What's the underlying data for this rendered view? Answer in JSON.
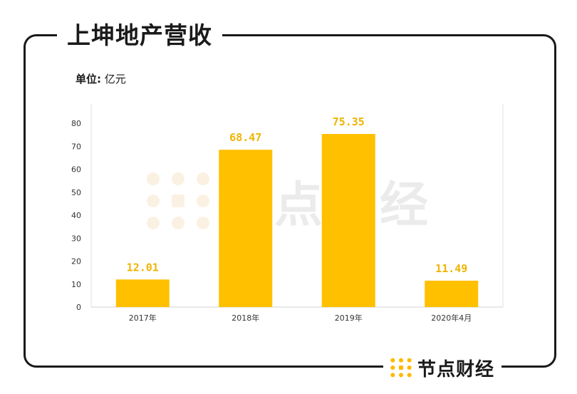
{
  "title": "上坤地产营收",
  "unit": {
    "label": "单位:",
    "value": "亿元"
  },
  "brand": {
    "name": "节点财经",
    "icon": "node-logo-icon"
  },
  "watermark": {
    "text": "节点财经",
    "icon": "node-logo-icon"
  },
  "colors": {
    "bar": "#FFC000",
    "value_label": "#F0B400",
    "frame": "#1A1A1A",
    "brand_orange": "#FFB800"
  },
  "chart_data": {
    "type": "bar",
    "categories": [
      "2017年",
      "2018年",
      "2019年",
      "2020年4月"
    ],
    "values": [
      12.01,
      68.47,
      75.35,
      11.49
    ],
    "value_labels": [
      "12.01",
      "68.47",
      "75.35",
      "11.49"
    ],
    "title": "上坤地产营收",
    "xlabel": "",
    "ylabel": "",
    "ylim": [
      0,
      80
    ],
    "yticks": [
      0,
      10,
      20,
      30,
      40,
      50,
      60,
      70,
      80
    ],
    "grid": false,
    "legend": "none"
  }
}
